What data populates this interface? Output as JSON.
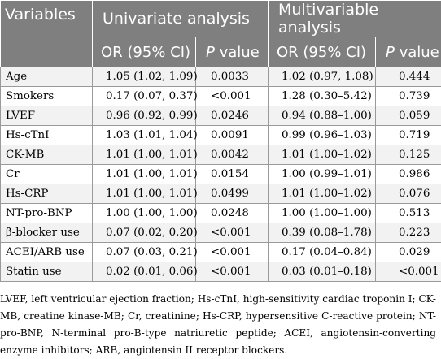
{
  "table": {
    "header": {
      "variables": "Variables",
      "univariate": "Univariate analysis",
      "multivariable": "Multivariable analysis",
      "or_ci": "OR (95% CI)",
      "p_letter": "P",
      "p_rest": " value"
    },
    "rows": [
      {
        "var": "Age",
        "uni_or": "1.05 (1.02, 1.09)",
        "uni_p": "0.0033",
        "multi_or": "1.02 (0.97, 1.08)",
        "multi_p": "0.444"
      },
      {
        "var": "Smokers",
        "uni_or": "0.17 (0.07, 0.37)",
        "uni_p": "<0.001",
        "multi_or": "1.28 (0.30–5.42)",
        "multi_p": "0.739"
      },
      {
        "var": "LVEF",
        "uni_or": "0.96 (0.92, 0.99)",
        "uni_p": "0.0246",
        "multi_or": "0.94 (0.88–1.00)",
        "multi_p": "0.059"
      },
      {
        "var": "Hs-cTnI",
        "uni_or": "1.03 (1.01, 1.04)",
        "uni_p": "0.0091",
        "multi_or": "0.99 (0.96–1.03)",
        "multi_p": "0.719"
      },
      {
        "var": "CK-MB",
        "uni_or": "1.01 (1.00, 1.01)",
        "uni_p": "0.0042",
        "multi_or": "1.01 (1.00–1.02)",
        "multi_p": "0.125"
      },
      {
        "var": "Cr",
        "uni_or": "1.01 (1.00, 1.01)",
        "uni_p": "0.0154",
        "multi_or": "1.00 (0.99–1.01)",
        "multi_p": "0.986"
      },
      {
        "var": "Hs-CRP",
        "uni_or": "1.01 (1.00, 1.01)",
        "uni_p": "0.0499",
        "multi_or": "1.01 (1.00–1.02)",
        "multi_p": "0.076"
      },
      {
        "var": "NT-pro-BNP",
        "uni_or": "1.00 (1.00, 1.00)",
        "uni_p": "0.0248",
        "multi_or": "1.00 (1.00–1.00)",
        "multi_p": "0.513"
      },
      {
        "var": "β-blocker use",
        "uni_or": "0.07 (0.02, 0.20)",
        "uni_p": "<0.001",
        "multi_or": "0.39 (0.08–1.78)",
        "multi_p": "0.223"
      },
      {
        "var": "ACEI/ARB use",
        "uni_or": "0.07 (0.03, 0.21)",
        "uni_p": "<0.001",
        "multi_or": "0.17 (0.04–0.84)",
        "multi_p": "0.029"
      },
      {
        "var": "Statin use",
        "uni_or": "0.02 (0.01, 0.06)",
        "uni_p": "<0.001",
        "multi_or": "0.03 (0.01–0.18)",
        "multi_p": "<0.001"
      }
    ]
  },
  "footnote": "LVEF, left ventricular ejection fraction; Hs-cTnI, high-sensitivity cardiac troponin I; CK-MB, creatine kinase-MB; Cr, creatinine; Hs-CRP, hypersensitive C-reactive protein; NT-pro-BNP, N-terminal pro-B-type natriuretic peptide; ACEI, angiotensin-converting enzyme inhibitors; ARB, angiotensin II receptor blockers."
}
